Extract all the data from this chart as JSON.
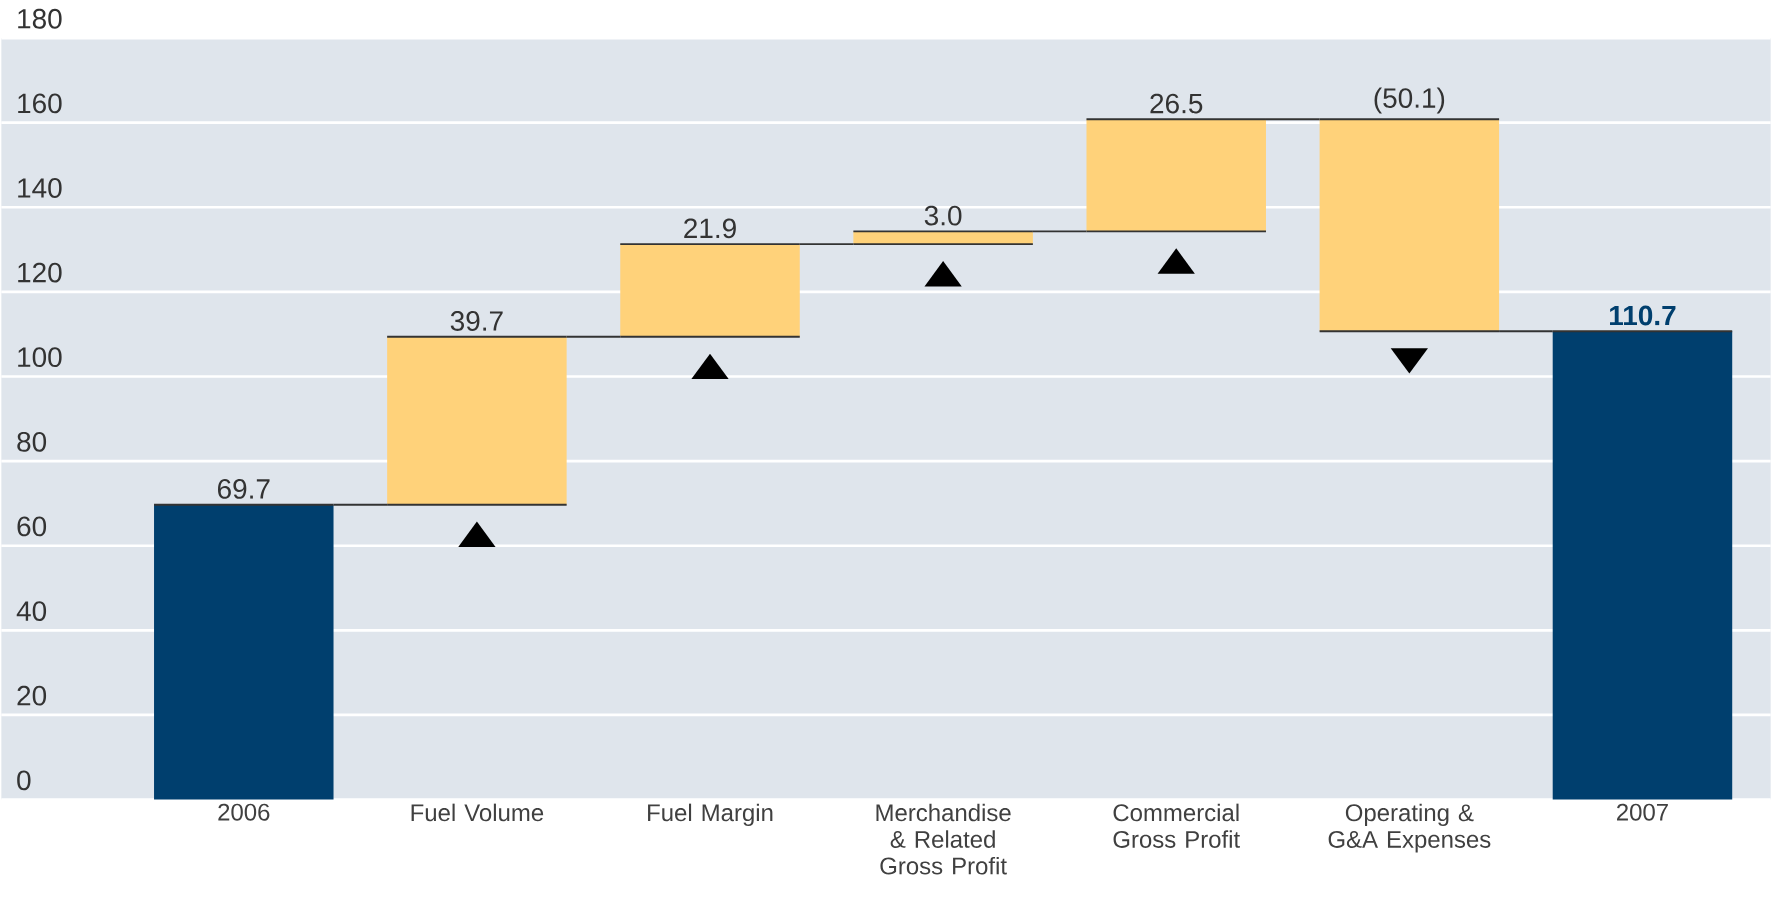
{
  "chart_data": {
    "type": "bar",
    "categories": [
      "2006",
      "Fuel Volume",
      "Fuel Margin",
      "Merchandise & Related Gross Profit",
      "Commercial Gross Profit",
      "Operating & G&A Expenses",
      "2007"
    ],
    "values": [
      69.7,
      39.7,
      21.9,
      3.0,
      26.5,
      -50.1,
      110.7
    ],
    "base": [
      0,
      69.7,
      109.4,
      131.3,
      134.3,
      160.8,
      0
    ],
    "colors": [
      "#003f6e",
      "#ffd27a",
      "#ffd27a",
      "#ffd27a",
      "#ffd27a",
      "#ffd27a",
      "#003f6e"
    ],
    "value_labels": [
      "69.7",
      "39.7",
      "21.9",
      "3.0",
      "26.5",
      "(50.1)",
      "110.7"
    ],
    "ylim": [
      0,
      180
    ],
    "yticks": [
      0,
      20,
      40,
      60,
      80,
      100,
      120,
      140,
      160,
      180
    ],
    "grid": "y",
    "legend": false
  }
}
